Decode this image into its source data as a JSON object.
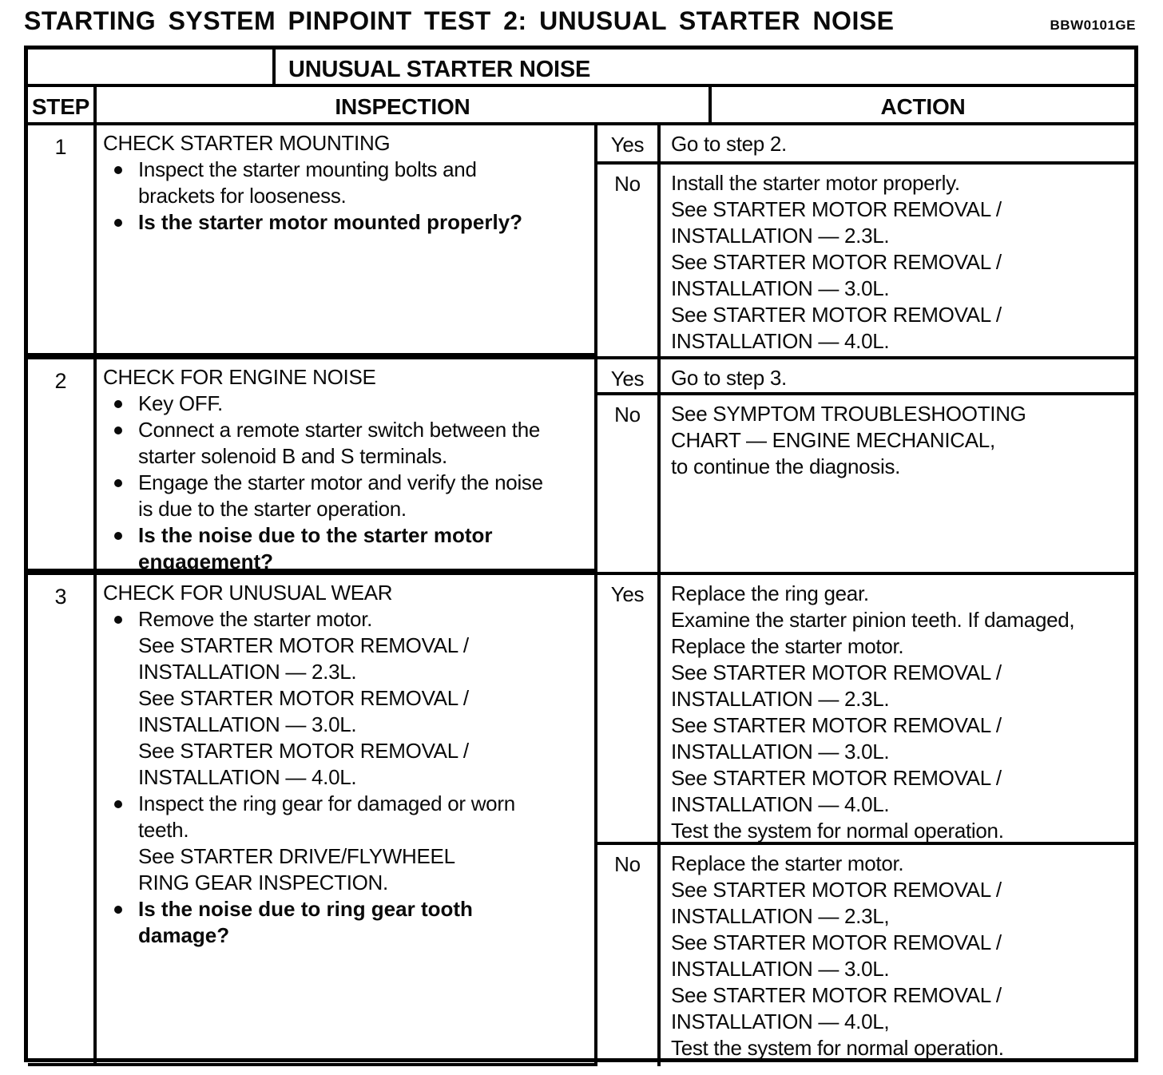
{
  "page": {
    "title": "STARTING SYSTEM PINPOINT TEST 2:  UNUSUAL STARTER NOISE",
    "doc_code": "BBW0101GE"
  },
  "table": {
    "subtitle": "UNUSUAL STARTER NOISE",
    "headers": {
      "step": "STEP",
      "inspection": "INSPECTION",
      "action": "ACTION"
    },
    "rows": [
      {
        "step": "1",
        "inspection": {
          "heading": "CHECK STARTER MOUNTING",
          "bullets": [
            {
              "text": "Inspect the starter mounting bolts and\nbrackets for looseness."
            },
            {
              "text": "Is the starter motor mounted properly?"
            }
          ]
        },
        "outcomes": [
          {
            "label": "Yes",
            "action": "Go to step 2."
          },
          {
            "label": "No",
            "action": "Install the starter motor properly.\nSee STARTER MOTOR REMOVAL /\nINSTALLATION — 2.3L.\nSee STARTER MOTOR REMOVAL /\nINSTALLATION — 3.0L.\nSee STARTER MOTOR REMOVAL /\nINSTALLATION — 4.0L."
          }
        ]
      },
      {
        "step": "2",
        "inspection": {
          "heading": "CHECK FOR ENGINE NOISE",
          "bullets": [
            {
              "text": "Key OFF."
            },
            {
              "text": "Connect a remote starter switch between the\nstarter solenoid B and S terminals."
            },
            {
              "text": "Engage the starter motor and verify the noise\nis due to the starter operation."
            },
            {
              "text": "Is the noise due to the starter motor\nengagement?"
            }
          ]
        },
        "outcomes": [
          {
            "label": "Yes",
            "action": "Go to step 3."
          },
          {
            "label": "No",
            "action": "See SYMPTOM TROUBLESHOOTING\nCHART — ENGINE MECHANICAL,\nto continue the diagnosis."
          }
        ]
      },
      {
        "step": "3",
        "inspection": {
          "heading": "CHECK FOR UNUSUAL WEAR",
          "bullets": [
            {
              "text": "Remove the starter motor.\nSee STARTER MOTOR REMOVAL /\nINSTALLATION — 2.3L.\nSee STARTER MOTOR REMOVAL /\nINSTALLATION — 3.0L.\nSee STARTER MOTOR REMOVAL /\nINSTALLATION — 4.0L."
            },
            {
              "text": "Inspect the ring gear for damaged or worn\nteeth.\nSee STARTER DRIVE/FLYWHEEL\nRING GEAR INSPECTION."
            },
            {
              "text": "Is the noise due to ring gear tooth\ndamage?"
            }
          ]
        },
        "outcomes": [
          {
            "label": "Yes",
            "action": "Replace the ring gear.\nExamine the starter pinion teeth.  If damaged,\nReplace the starter motor.\nSee STARTER MOTOR REMOVAL /\nINSTALLATION — 2.3L.\nSee STARTER MOTOR REMOVAL /\nINSTALLATION — 3.0L.\nSee STARTER MOTOR REMOVAL /\nINSTALLATION — 4.0L.\nTest the system for normal operation."
          },
          {
            "label": "No",
            "action": "Replace the starter motor.\nSee STARTER MOTOR REMOVAL /\nINSTALLATION — 2.3L,\nSee STARTER MOTOR REMOVAL /\nINSTALLATION — 3.0L.\nSee STARTER MOTOR REMOVAL /\nINSTALLATION — 4.0L,\nTest the system for normal operation."
          }
        ]
      }
    ]
  }
}
